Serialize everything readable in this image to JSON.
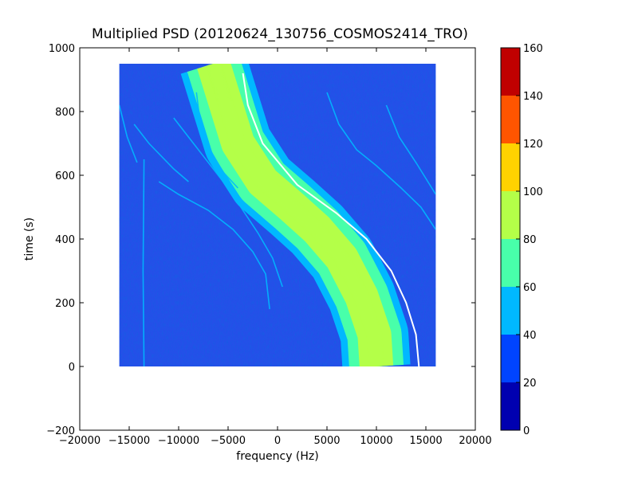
{
  "chart_data": {
    "type": "heatmap",
    "title": "Multiplied PSD (20120624_130756_COSMOS2414_TRO)",
    "xlabel": "frequency (Hz)",
    "ylabel": "time (s)",
    "xlim": [
      -20000,
      20000
    ],
    "ylim": [
      -200,
      1000
    ],
    "x_ticks": [
      -20000,
      -15000,
      -10000,
      -5000,
      0,
      5000,
      10000,
      15000,
      20000
    ],
    "x_tick_labels": [
      "−20000",
      "−15000",
      "−10000",
      "−5000",
      "0",
      "5000",
      "10000",
      "15000",
      "20000"
    ],
    "y_ticks": [
      -200,
      0,
      200,
      400,
      600,
      800,
      1000
    ],
    "y_tick_labels": [
      "−200",
      "0",
      "200",
      "400",
      "600",
      "800",
      "1000"
    ],
    "data_extent": {
      "x": [
        -16000,
        16000
      ],
      "y": [
        0,
        950
      ]
    },
    "colorbar": {
      "range": [
        0,
        160
      ],
      "levels": [
        0,
        20,
        40,
        60,
        80,
        100,
        120,
        140,
        160
      ],
      "tick_labels": [
        "0",
        "20",
        "40",
        "60",
        "80",
        "100",
        "120",
        "140",
        "160"
      ],
      "colors": [
        "#0000b0",
        "#0044ff",
        "#00b8ff",
        "#48ffaa",
        "#b4ff48",
        "#ffd200",
        "#ff5500",
        "#c00000"
      ]
    },
    "background_color": "#2450e8",
    "features": [
      {
        "name": "main-band",
        "level": [
          60,
          100
        ],
        "points": [
          [
            -6500,
            950
          ],
          [
            -5500,
            850
          ],
          [
            -4000,
            700
          ],
          [
            -1500,
            580
          ],
          [
            1500,
            500
          ],
          [
            4000,
            430
          ],
          [
            6500,
            340
          ],
          [
            8500,
            220
          ],
          [
            9800,
            100
          ],
          [
            10000,
            0
          ]
        ],
        "width": 5500
      },
      {
        "name": "bright-edge-trace",
        "level": [
          80,
          160
        ],
        "points": [
          [
            -3500,
            920
          ],
          [
            -3000,
            820
          ],
          [
            -1500,
            700
          ],
          [
            2000,
            570
          ],
          [
            6000,
            480
          ],
          [
            9000,
            400
          ],
          [
            11500,
            300
          ],
          [
            13000,
            200
          ],
          [
            14000,
            100
          ],
          [
            14300,
            0
          ]
        ]
      },
      {
        "name": "faint-trace-1",
        "level": [
          40,
          60
        ],
        "points": [
          [
            -16000,
            820
          ],
          [
            -15200,
            720
          ],
          [
            -14200,
            640
          ]
        ]
      },
      {
        "name": "faint-trace-2",
        "level": [
          40,
          60
        ],
        "points": [
          [
            -14500,
            760
          ],
          [
            -13000,
            700
          ],
          [
            -10500,
            620
          ],
          [
            -9000,
            580
          ]
        ]
      },
      {
        "name": "faint-trace-3",
        "level": [
          40,
          60
        ],
        "points": [
          [
            -12000,
            580
          ],
          [
            -10000,
            540
          ],
          [
            -7000,
            490
          ],
          [
            -4500,
            430
          ],
          [
            -2500,
            360
          ],
          [
            -1200,
            290
          ],
          [
            -800,
            180
          ]
        ]
      },
      {
        "name": "faint-trace-4",
        "level": [
          40,
          60
        ],
        "points": [
          [
            -10500,
            780
          ],
          [
            -8500,
            700
          ],
          [
            -6500,
            620
          ],
          [
            -5000,
            560
          ],
          [
            -3500,
            490
          ],
          [
            -2000,
            420
          ],
          [
            -500,
            340
          ],
          [
            500,
            250
          ]
        ]
      },
      {
        "name": "faint-trace-5",
        "level": [
          40,
          60
        ],
        "points": [
          [
            -8200,
            860
          ],
          [
            -7800,
            760
          ],
          [
            -7000,
            690
          ],
          [
            -5500,
            610
          ],
          [
            -4000,
            560
          ]
        ]
      },
      {
        "name": "faint-trace-6",
        "level": [
          40,
          60
        ],
        "points": [
          [
            5000,
            860
          ],
          [
            6200,
            760
          ],
          [
            8000,
            680
          ],
          [
            10000,
            630
          ],
          [
            12500,
            560
          ],
          [
            14500,
            500
          ],
          [
            16000,
            430
          ]
        ]
      },
      {
        "name": "faint-trace-7",
        "level": [
          40,
          60
        ],
        "points": [
          [
            11000,
            820
          ],
          [
            12300,
            720
          ],
          [
            14000,
            640
          ],
          [
            16000,
            540
          ]
        ]
      },
      {
        "name": "faint-trace-8",
        "level": [
          40,
          60
        ],
        "points": [
          [
            -13500,
            0
          ],
          [
            -13600,
            300
          ],
          [
            -13500,
            650
          ]
        ]
      }
    ]
  }
}
